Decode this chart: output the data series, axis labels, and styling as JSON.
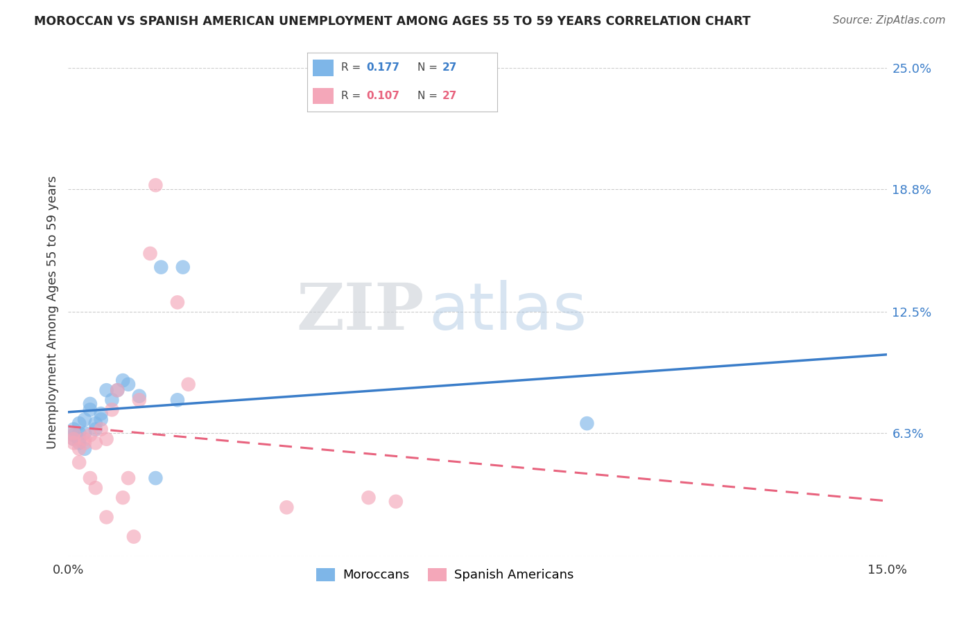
{
  "title": "MOROCCAN VS SPANISH AMERICAN UNEMPLOYMENT AMONG AGES 55 TO 59 YEARS CORRELATION CHART",
  "source": "Source: ZipAtlas.com",
  "ylabel": "Unemployment Among Ages 55 to 59 years",
  "xlim": [
    0.0,
    0.15
  ],
  "ylim": [
    0.0,
    0.25
  ],
  "ytick_positions": [
    0.0,
    0.063,
    0.125,
    0.188,
    0.25
  ],
  "ytick_labels": [
    "",
    "6.3%",
    "12.5%",
    "18.8%",
    "25.0%"
  ],
  "moroccan_x": [
    0.001,
    0.001,
    0.001,
    0.002,
    0.002,
    0.002,
    0.002,
    0.003,
    0.003,
    0.003,
    0.004,
    0.004,
    0.005,
    0.005,
    0.006,
    0.006,
    0.007,
    0.008,
    0.009,
    0.01,
    0.011,
    0.013,
    0.016,
    0.017,
    0.02,
    0.021,
    0.095
  ],
  "moroccan_y": [
    0.06,
    0.062,
    0.065,
    0.058,
    0.06,
    0.063,
    0.068,
    0.055,
    0.07,
    0.063,
    0.075,
    0.078,
    0.065,
    0.068,
    0.07,
    0.073,
    0.085,
    0.08,
    0.085,
    0.09,
    0.088,
    0.082,
    0.04,
    0.148,
    0.08,
    0.148,
    0.068
  ],
  "spanish_x": [
    0.001,
    0.001,
    0.001,
    0.002,
    0.002,
    0.003,
    0.003,
    0.004,
    0.004,
    0.005,
    0.005,
    0.006,
    0.007,
    0.007,
    0.008,
    0.009,
    0.01,
    0.011,
    0.012,
    0.013,
    0.015,
    0.016,
    0.02,
    0.022,
    0.04,
    0.055,
    0.06
  ],
  "spanish_y": [
    0.058,
    0.06,
    0.063,
    0.048,
    0.055,
    0.058,
    0.06,
    0.04,
    0.062,
    0.035,
    0.058,
    0.065,
    0.02,
    0.06,
    0.075,
    0.085,
    0.03,
    0.04,
    0.01,
    0.08,
    0.155,
    0.19,
    0.13,
    0.088,
    0.025,
    0.03,
    0.028
  ],
  "moroccan_color": "#7EB6E8",
  "spanish_color": "#F4A7B9",
  "moroccan_line_color": "#3A7DC9",
  "spanish_line_color": "#E8637E",
  "R_moroccan": 0.177,
  "N_moroccan": 27,
  "R_spanish": 0.107,
  "N_spanish": 27,
  "legend_moroccan": "Moroccans",
  "legend_spanish": "Spanish Americans",
  "background_color": "#ffffff",
  "grid_color": "#cccccc",
  "watermark_zip": "ZIP",
  "watermark_atlas": "atlas"
}
